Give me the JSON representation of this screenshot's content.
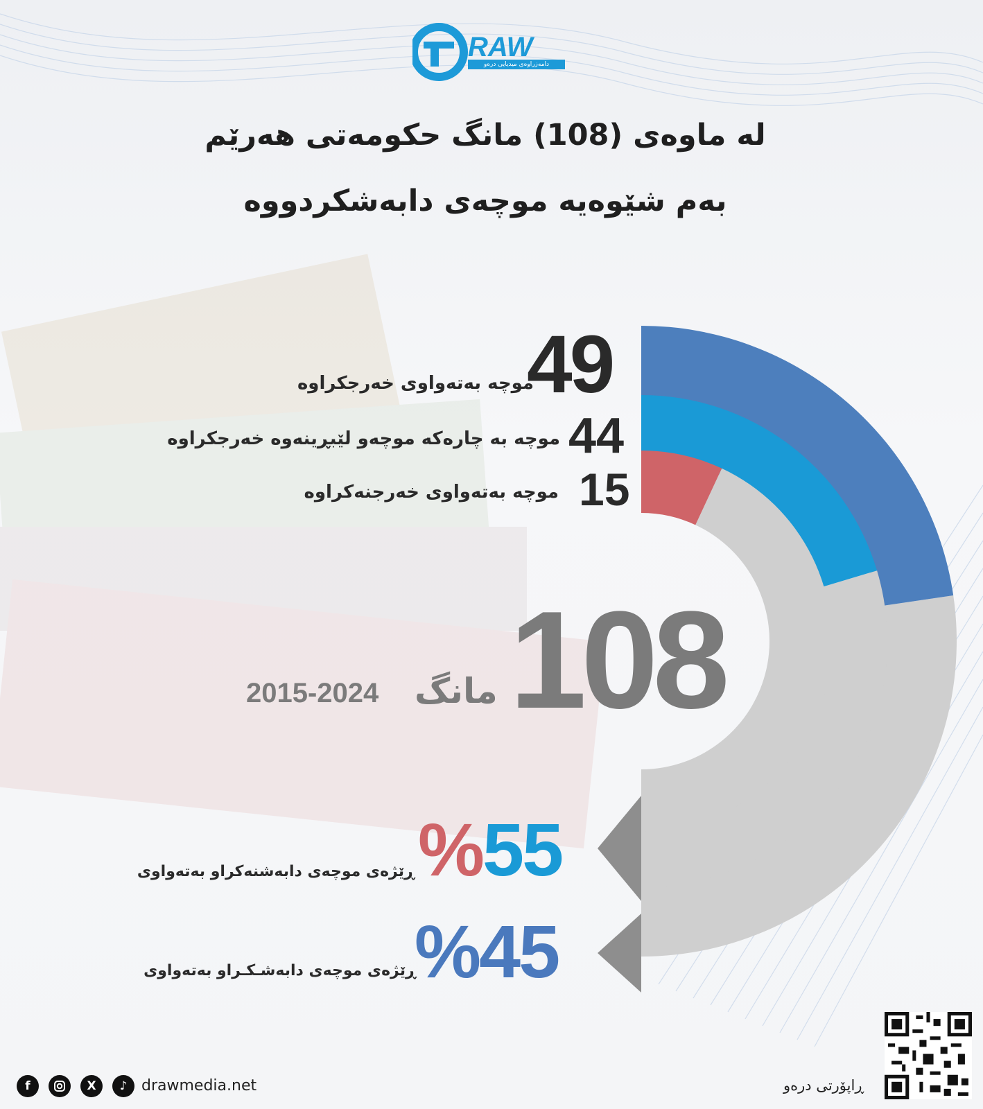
{
  "brand": {
    "logo_text": "RAW",
    "logo_subtitle": "دامەزراوەی میدیایی درەو"
  },
  "title": {
    "line1": "لە ماوەی (108) مانگ حکومەتی هەرێم",
    "line2": "بەم شێوەیە موچەی دابەشکردووە"
  },
  "colors": {
    "fully_paid": "#4d7fbd",
    "partial": "#1a9ad6",
    "not_paid": "#cf6468",
    "remainder": "#cfcfcf",
    "total_text": "#7b7b7b"
  },
  "chart_data": {
    "type": "pie",
    "total": {
      "value": "108",
      "unit": "مانگ",
      "period": "2015-2024"
    },
    "slices": [
      {
        "label": "موچە بەتەواوی خەرجکراوە",
        "value": 49,
        "color": "#4d7fbd"
      },
      {
        "label": "موچە بە چارەکە موچەو لێبڕینەوە خەرجکراوە",
        "value": 44,
        "color": "#1a9ad6"
      },
      {
        "label": "موچە بەتەواوی خەرجنەکراوە",
        "value": 15,
        "color": "#cf6468"
      }
    ],
    "percentages": [
      {
        "value": "55",
        "sign": "%",
        "label": "ڕێژەی موچەی دابەشنەکراو بەتەواوی"
      },
      {
        "value": "45",
        "sign": "%",
        "label": "ڕێژەی موچەی دابەشـکـراو بەتەواوی"
      }
    ]
  },
  "footer": {
    "website": "drawmedia.net",
    "report_label": "ڕاپۆرتی درەو",
    "social_icons": [
      "facebook-icon",
      "instagram-icon",
      "x-icon",
      "tiktok-icon"
    ]
  }
}
